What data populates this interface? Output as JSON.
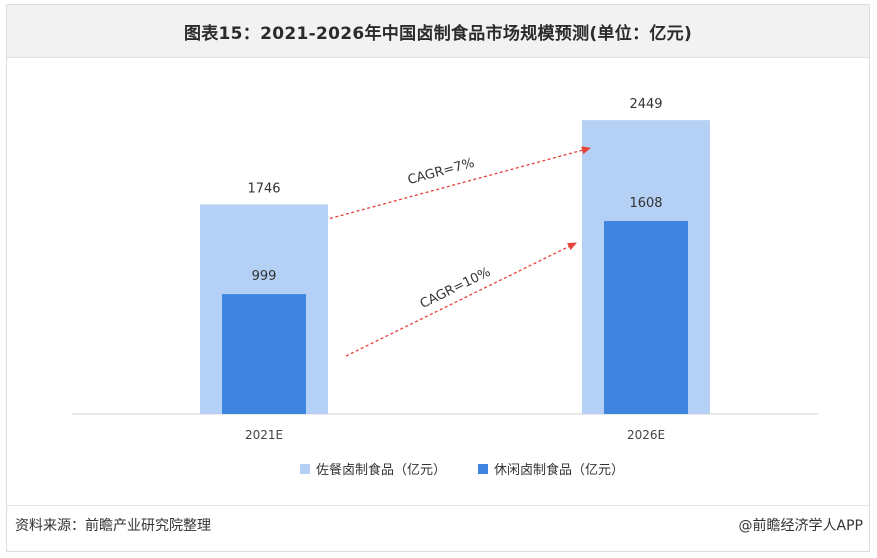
{
  "title": "图表15：2021-2026年中国卤制食品市场规模预测(单位：亿元)",
  "chart_data": {
    "type": "bar",
    "categories": [
      "2021E",
      "2026E"
    ],
    "series": [
      {
        "name": "佐餐卤制食品（亿元）",
        "values": [
          1746,
          2449
        ],
        "color": "#b4d0f4"
      },
      {
        "name": "休闲卤制食品（亿元）",
        "values": [
          999,
          1608
        ],
        "color": "#3f85e0"
      }
    ],
    "ylim": [
      0,
      2500
    ],
    "legend_position": "bottom",
    "annotations": [
      {
        "text": "CAGR=7%",
        "series": "佐餐卤制食品（亿元）",
        "from": "2021E",
        "to": "2026E"
      },
      {
        "text": "CAGR=10%",
        "series": "休闲卤制食品（亿元）",
        "from": "2021E",
        "to": "2026E"
      }
    ],
    "arrow_color": "#e8413a"
  },
  "footer": {
    "source": "资料来源：前瞻产业研究院整理",
    "credit": "@前瞻经济学人APP"
  }
}
